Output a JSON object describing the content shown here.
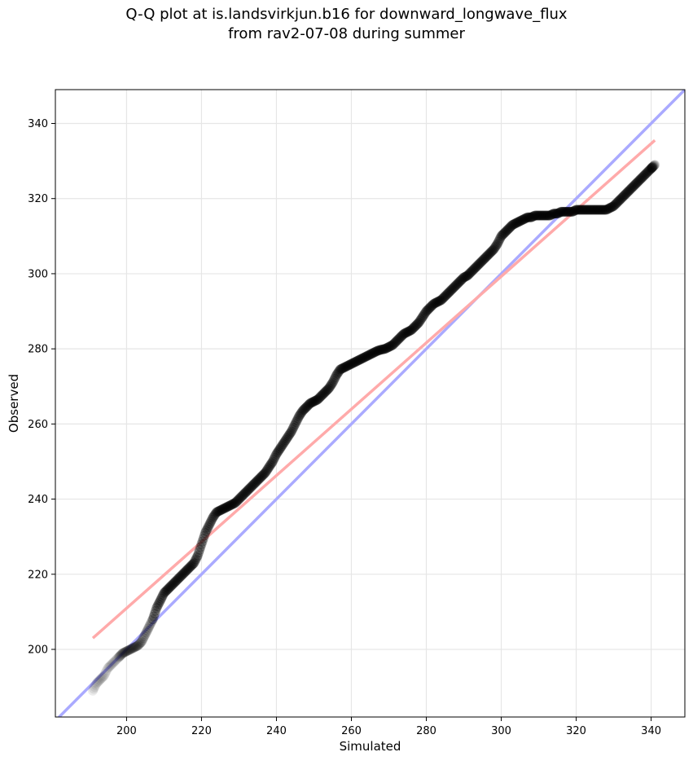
{
  "title": {
    "line1": "Q-Q plot at is.landsvirkjun.b16 for downward_longwave_flux",
    "line2": "from rav2-07-08 during summer"
  },
  "chart_data": {
    "type": "scatter",
    "title": "Q-Q plot at is.landsvirkjun.b16 for downward_longwave_flux from rav2-07-08 during summer",
    "xlabel": "Simulated",
    "ylabel": "Observed",
    "xlim": [
      181,
      349
    ],
    "ylim": [
      182,
      349
    ],
    "xticks": [
      200,
      220,
      240,
      260,
      280,
      300,
      320,
      340
    ],
    "yticks": [
      200,
      220,
      240,
      260,
      280,
      300,
      320,
      340
    ],
    "grid": true,
    "colors": {
      "points": "#000000",
      "identity_line": "#aaaaff",
      "fit_line": "#ffaaaa"
    },
    "identity_line": {
      "x": [
        181,
        349
      ],
      "y": [
        181,
        349
      ]
    },
    "fit_line": {
      "x": [
        191,
        341
      ],
      "y": [
        203,
        335.5
      ]
    },
    "quantiles": {
      "x": [
        191,
        192,
        193,
        194,
        195,
        196,
        197,
        198,
        199,
        200,
        201,
        202,
        203,
        204,
        205,
        206,
        207,
        208,
        209,
        210,
        211,
        212,
        213,
        214,
        215,
        216,
        217,
        218,
        219,
        220,
        221,
        222,
        223,
        224,
        225,
        226,
        227,
        228,
        229,
        230,
        231,
        232,
        233,
        234,
        235,
        236,
        237,
        238,
        239,
        240,
        241,
        242,
        243,
        244,
        245,
        246,
        247,
        248,
        249,
        250,
        251,
        252,
        253,
        254,
        255,
        256,
        257,
        258,
        259,
        260,
        261,
        262,
        263,
        264,
        265,
        266,
        267,
        268,
        269,
        270,
        271,
        272,
        273,
        274,
        275,
        276,
        277,
        278,
        279,
        280,
        281,
        282,
        283,
        284,
        285,
        286,
        287,
        288,
        289,
        290,
        291,
        292,
        293,
        294,
        295,
        296,
        297,
        298,
        299,
        300,
        301,
        302,
        303,
        304,
        305,
        306,
        307,
        308,
        309,
        310,
        311,
        312,
        313,
        314,
        315,
        316,
        317,
        318,
        319,
        320,
        321,
        322,
        323,
        324,
        325,
        326,
        327,
        328,
        329,
        330,
        331,
        332,
        333,
        334,
        335,
        336,
        337,
        338,
        339,
        340,
        340.5,
        341
      ],
      "y": [
        189,
        191,
        192,
        193,
        195,
        196,
        197,
        198,
        199,
        199.5,
        200,
        200.5,
        201,
        202,
        204,
        206,
        208,
        211,
        213,
        215,
        216,
        217,
        218,
        219,
        220,
        221,
        222,
        223,
        225,
        228,
        231,
        233,
        235,
        236.5,
        237,
        237.5,
        238,
        238.5,
        239,
        240,
        241,
        242,
        243,
        244,
        245,
        246,
        247,
        248.5,
        250,
        252,
        253.5,
        255,
        256.5,
        258,
        260,
        262,
        263.5,
        264.5,
        265.5,
        266,
        266.5,
        267.5,
        268.5,
        269.5,
        271,
        273,
        274.5,
        275,
        275.5,
        276,
        276.5,
        277,
        277.5,
        278,
        278.5,
        279,
        279.5,
        279.8,
        280,
        280.5,
        281,
        282,
        283,
        284,
        284.5,
        285,
        286,
        287,
        288.5,
        290,
        291,
        292,
        292.5,
        293,
        294,
        295,
        296,
        297,
        298,
        299,
        299.5,
        300.5,
        301.5,
        302.5,
        303.5,
        304.5,
        305.5,
        306.5,
        308,
        310,
        311,
        312,
        313,
        313.5,
        314,
        314.5,
        315,
        315,
        315.5,
        315.5,
        315.5,
        315.5,
        315.5,
        316,
        316,
        316.5,
        316.5,
        316.5,
        316.5,
        317,
        317,
        317,
        317,
        317,
        317,
        317,
        317,
        317,
        317.5,
        318,
        319,
        320,
        321,
        322,
        323,
        324,
        325,
        326,
        327,
        328,
        328.5,
        329
      ]
    }
  }
}
